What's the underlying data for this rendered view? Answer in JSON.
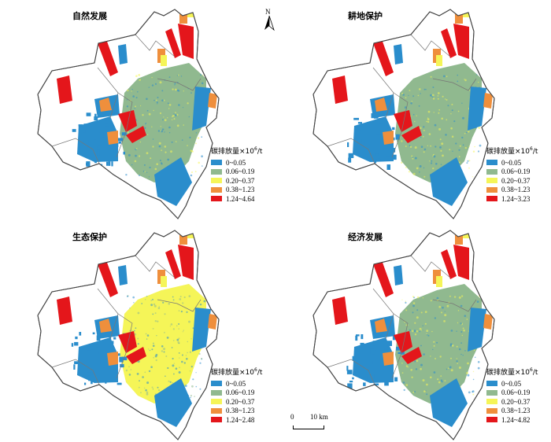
{
  "legend": {
    "title_prefix": "碳排放量×10",
    "title_sup": "6",
    "title_suffix": "/t"
  },
  "colors": {
    "class1": "#2a8dcc",
    "class2": "#90b98f",
    "class3": "#f5f558",
    "class4": "#ef8f3c",
    "class5": "#e4161b"
  },
  "panels": [
    {
      "title": "自然发展",
      "base_color": "class2",
      "legend_items": [
        "0~0.05",
        "0.06~0.19",
        "0.20~0.37",
        "0.38~1.23",
        "1.24~4.64"
      ]
    },
    {
      "title": "耕地保护",
      "base_color": "class2",
      "legend_items": [
        "0~0.05",
        "0.06~0.19",
        "0.20~0.37",
        "0.38~1.23",
        "1.24~3.23"
      ]
    },
    {
      "title": "生态保护",
      "base_color": "class3",
      "legend_items": [
        "0~0.05",
        "0.06~0.19",
        "0.20~0.37",
        "0.38~1.23",
        "1.24~2.48"
      ]
    },
    {
      "title": "经济发展",
      "base_color": "class2",
      "legend_items": [
        "0~0.05",
        "0.06~0.19",
        "0.20~0.37",
        "0.38~1.23",
        "1.24~4.82"
      ]
    }
  ],
  "north_label": "N",
  "scale": {
    "start": "0",
    "end": "10 km"
  }
}
